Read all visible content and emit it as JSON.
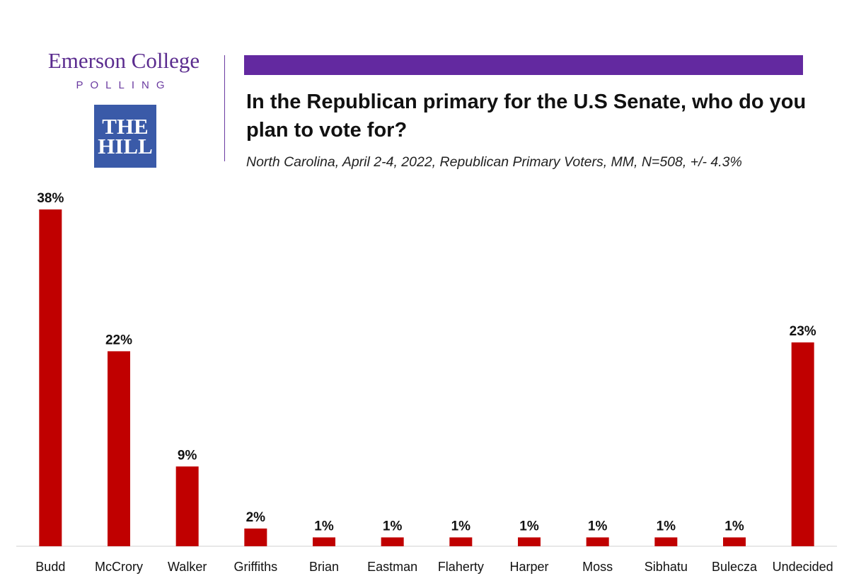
{
  "header": {
    "logo_emerson": "Emerson College",
    "logo_polling": "POLLING",
    "logo_hill_line1": "THE",
    "logo_hill_line2": "HILL"
  },
  "colors": {
    "accent_purple": "#6329a0",
    "bar_red": "#c00000",
    "hill_blue": "#3a5aa8"
  },
  "chart_data": {
    "type": "bar",
    "title": "In the Republican primary for the U.S Senate, who do you plan to vote for?",
    "subtitle": "North Carolina, April 2-4, 2022, Republican Primary Voters, MM, N=508, +/- 4.3%",
    "categories": [
      "Budd",
      "McCrory",
      "Walker",
      "Griffiths",
      "Brian",
      "Eastman",
      "Flaherty",
      "Harper",
      "Moss",
      "Sibhatu",
      "Bulecza",
      "Undecided"
    ],
    "values": [
      38,
      22,
      9,
      2,
      1,
      1,
      1,
      1,
      1,
      1,
      1,
      23
    ],
    "labels": [
      "38%",
      "22%",
      "9%",
      "2%",
      "1%",
      "1%",
      "1%",
      "1%",
      "1%",
      "1%",
      "1%",
      "23%"
    ],
    "xlabel": "",
    "ylabel": "",
    "ylim": [
      0,
      38
    ],
    "grid": false,
    "legend": "none"
  }
}
